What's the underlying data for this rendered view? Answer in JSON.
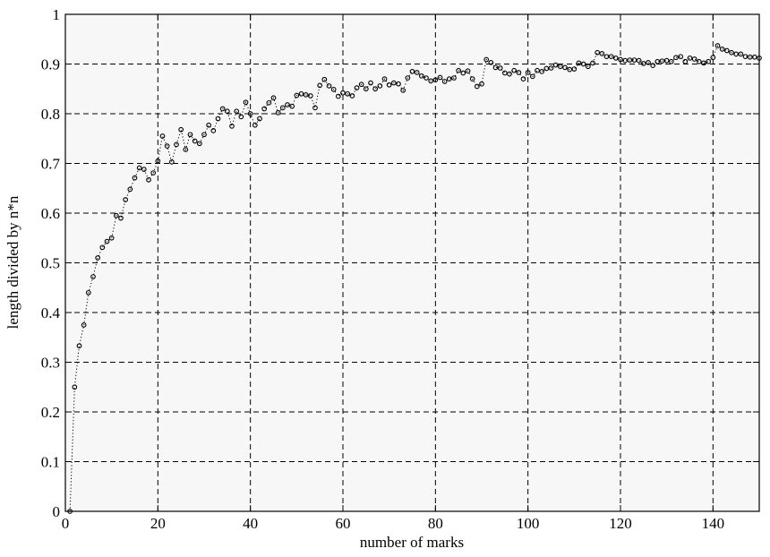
{
  "chart_data": {
    "type": "scatter",
    "title": "",
    "xlabel": "number of marks",
    "ylabel": "length divided by n*n",
    "xlim": [
      0,
      150
    ],
    "ylim": [
      0,
      1
    ],
    "xticks": [
      0,
      20,
      40,
      60,
      80,
      100,
      120,
      140
    ],
    "yticks": [
      0,
      0.1,
      0.2,
      0.3,
      0.4,
      0.5,
      0.6,
      0.7,
      0.8,
      0.9,
      1
    ],
    "ytick_labels": [
      "0",
      "0.1",
      "0.2",
      "0.3",
      "0.4",
      "0.5",
      "0.6",
      "0.7",
      "0.8",
      "0.9",
      "1"
    ],
    "grid": true,
    "marker": "circle",
    "line_style": "dotted",
    "series": [
      {
        "x": [
          1,
          2,
          3,
          4,
          5,
          6,
          7,
          8,
          9,
          10,
          11,
          12,
          13,
          14,
          15,
          16,
          17,
          18,
          19,
          20,
          21,
          22,
          23,
          24,
          25,
          26,
          27,
          28,
          29,
          30,
          31,
          32,
          33,
          34,
          35,
          36,
          37,
          38,
          39,
          40,
          41,
          42,
          43,
          44,
          45,
          46,
          47,
          48,
          49,
          50,
          51,
          52,
          53,
          54,
          55,
          56,
          57,
          58,
          59,
          60,
          61,
          62,
          63,
          64,
          65,
          66,
          67,
          68,
          69,
          70,
          71,
          72,
          73,
          74,
          75,
          76,
          77,
          78,
          79,
          80,
          81,
          82,
          83,
          84,
          85,
          86,
          87,
          88,
          89,
          90,
          91,
          92,
          93,
          94,
          95,
          96,
          97,
          98,
          99,
          100,
          101,
          102,
          103,
          104,
          105,
          106,
          107,
          108,
          109,
          110,
          111,
          112,
          113,
          114,
          115,
          116,
          117,
          118,
          119,
          120,
          121,
          122,
          123,
          124,
          125,
          126,
          127,
          128,
          129,
          130,
          131,
          132,
          133,
          134,
          135,
          136,
          137,
          138,
          139,
          140,
          141,
          142,
          143,
          144,
          145,
          146,
          147,
          148,
          149,
          150
        ],
        "y": [
          0,
          0.25,
          0.333,
          0.375,
          0.44,
          0.472,
          0.51,
          0.531,
          0.543,
          0.55,
          0.595,
          0.59,
          0.627,
          0.648,
          0.671,
          0.691,
          0.688,
          0.667,
          0.681,
          0.705,
          0.755,
          0.735,
          0.703,
          0.738,
          0.768,
          0.728,
          0.758,
          0.745,
          0.74,
          0.758,
          0.777,
          0.766,
          0.79,
          0.81,
          0.805,
          0.775,
          0.805,
          0.794,
          0.823,
          0.8,
          0.777,
          0.79,
          0.81,
          0.822,
          0.832,
          0.802,
          0.812,
          0.818,
          0.815,
          0.837,
          0.84,
          0.838,
          0.836,
          0.812,
          0.857,
          0.869,
          0.856,
          0.849,
          0.835,
          0.842,
          0.84,
          0.836,
          0.852,
          0.859,
          0.85,
          0.862,
          0.85,
          0.856,
          0.87,
          0.858,
          0.862,
          0.86,
          0.847,
          0.872,
          0.885,
          0.883,
          0.876,
          0.872,
          0.866,
          0.868,
          0.873,
          0.865,
          0.87,
          0.872,
          0.887,
          0.882,
          0.886,
          0.87,
          0.855,
          0.86,
          0.909,
          0.903,
          0.893,
          0.892,
          0.882,
          0.88,
          0.887,
          0.883,
          0.87,
          0.883,
          0.875,
          0.887,
          0.885,
          0.891,
          0.892,
          0.898,
          0.895,
          0.893,
          0.889,
          0.89,
          0.902,
          0.9,
          0.895,
          0.902,
          0.923,
          0.921,
          0.915,
          0.915,
          0.912,
          0.909,
          0.907,
          0.908,
          0.908,
          0.907,
          0.901,
          0.903,
          0.897,
          0.905,
          0.906,
          0.907,
          0.905,
          0.913,
          0.915,
          0.905,
          0.912,
          0.91,
          0.905,
          0.902,
          0.905,
          0.913,
          0.937,
          0.93,
          0.927,
          0.923,
          0.92,
          0.92,
          0.915,
          0.914,
          0.914,
          0.912
        ]
      }
    ]
  }
}
